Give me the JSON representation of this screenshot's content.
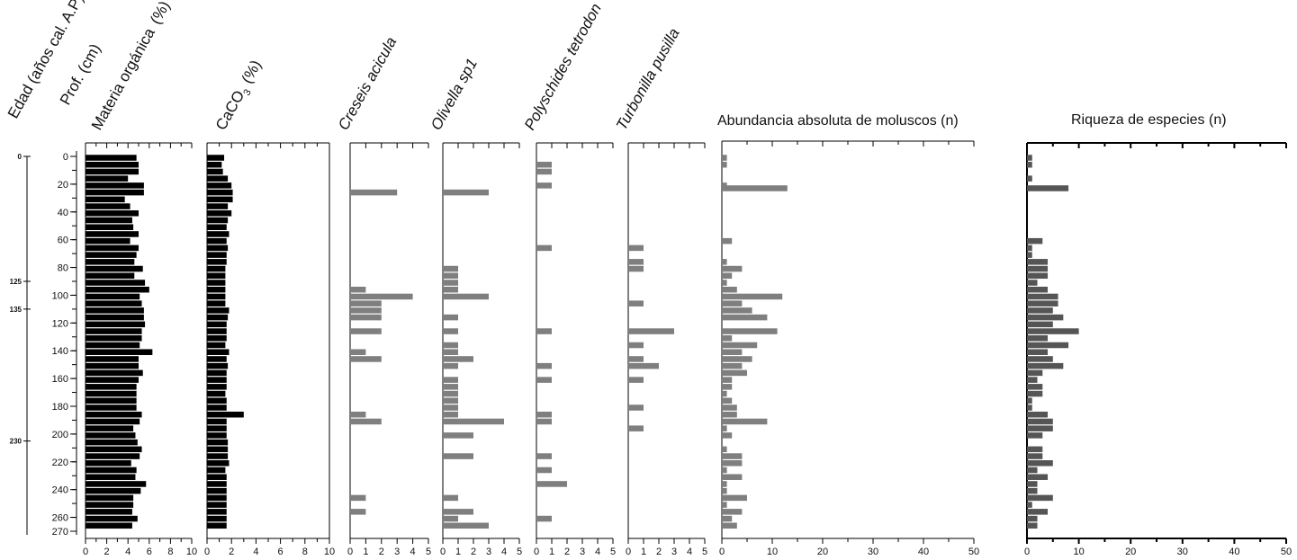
{
  "figure": {
    "age_header": "Edad (años cal. A.P)",
    "depth_header": "Prof. (cm)"
  },
  "chart_data": [
    {
      "type": "bar",
      "orientation": "horizontal",
      "name": "Materia orgánica (%)",
      "title_text": "Materia orgánica",
      "unit": "(%)",
      "xlim": [
        0,
        10
      ],
      "ticks": [
        "0",
        "2",
        "4",
        "6",
        "8",
        "10"
      ],
      "depths": [
        0,
        5,
        10,
        15,
        20,
        25,
        30,
        35,
        40,
        45,
        50,
        55,
        60,
        65,
        70,
        75,
        80,
        85,
        90,
        95,
        100,
        105,
        110,
        115,
        120,
        125,
        130,
        135,
        140,
        145,
        150,
        155,
        160,
        165,
        170,
        175,
        180,
        185,
        190,
        195,
        200,
        205,
        210,
        215,
        220,
        225,
        230,
        235,
        240,
        245,
        250,
        255,
        260,
        265
      ],
      "values": [
        4.8,
        5.0,
        5.0,
        4.0,
        5.5,
        5.5,
        3.7,
        4.2,
        5.0,
        4.4,
        4.5,
        5.0,
        4.2,
        5.0,
        4.8,
        4.6,
        5.4,
        4.6,
        5.6,
        6.0,
        5.1,
        5.3,
        5.5,
        5.5,
        5.6,
        5.3,
        5.3,
        5.1,
        6.3,
        5.0,
        5.0,
        5.4,
        5.0,
        4.8,
        4.8,
        4.8,
        4.8,
        5.3,
        5.1,
        4.5,
        4.7,
        4.9,
        5.3,
        5.1,
        4.3,
        4.8,
        4.7,
        5.7,
        5.2,
        4.5,
        4.5,
        4.4,
        4.9,
        4.4
      ]
    },
    {
      "type": "bar",
      "orientation": "horizontal",
      "name": "CaCO3 (%)",
      "title_text": "CaCO",
      "title_sub": "3",
      "unit": "(%)",
      "xlim": [
        0,
        10
      ],
      "ticks": [
        "0",
        "2",
        "4",
        "6",
        "8",
        "10"
      ],
      "depths": [
        0,
        5,
        10,
        15,
        20,
        25,
        30,
        35,
        40,
        45,
        50,
        55,
        60,
        65,
        70,
        75,
        80,
        85,
        90,
        95,
        100,
        105,
        110,
        115,
        120,
        125,
        130,
        135,
        140,
        145,
        150,
        155,
        160,
        165,
        170,
        175,
        180,
        185,
        190,
        195,
        200,
        205,
        210,
        215,
        220,
        225,
        230,
        235,
        240,
        245,
        250,
        255,
        260,
        265
      ],
      "values": [
        1.4,
        1.2,
        1.3,
        1.7,
        2.0,
        2.1,
        2.1,
        1.7,
        2.0,
        1.7,
        1.6,
        1.8,
        1.6,
        1.7,
        1.6,
        1.6,
        1.5,
        1.5,
        1.5,
        1.5,
        1.5,
        1.5,
        1.8,
        1.7,
        1.6,
        1.6,
        1.6,
        1.5,
        1.8,
        1.6,
        1.7,
        1.6,
        1.6,
        1.6,
        1.5,
        1.6,
        1.6,
        3.0,
        1.6,
        1.6,
        1.6,
        1.7,
        1.7,
        1.7,
        1.8,
        1.5,
        1.6,
        1.6,
        1.6,
        1.6,
        1.6,
        1.6,
        1.6,
        1.6
      ]
    },
    {
      "type": "bar",
      "orientation": "horizontal",
      "name": "Creseis acicula",
      "title_text": "Creseis acicula",
      "italic": true,
      "xlim": [
        0,
        5
      ],
      "ticks": [
        "0",
        "1",
        "2",
        "3",
        "4",
        "5"
      ],
      "depths": [
        25,
        95,
        100,
        105,
        110,
        115,
        125,
        140,
        145,
        185,
        190,
        245,
        255
      ],
      "values": [
        3,
        1,
        4,
        2,
        2,
        2,
        2,
        1,
        2,
        1,
        2,
        1,
        1
      ]
    },
    {
      "type": "bar",
      "orientation": "horizontal",
      "name": "Olivella sp1",
      "title_text": "Olivella sp1",
      "italic": true,
      "xlim": [
        0,
        5
      ],
      "ticks": [
        "0",
        "1",
        "2",
        "3",
        "4",
        "5"
      ],
      "depths": [
        25,
        80,
        85,
        90,
        95,
        100,
        115,
        125,
        135,
        140,
        145,
        150,
        160,
        165,
        170,
        175,
        180,
        185,
        190,
        200,
        215,
        245,
        255,
        260,
        265
      ],
      "values": [
        3,
        1,
        1,
        1,
        1,
        3,
        1,
        1,
        1,
        1,
        2,
        1,
        1,
        1,
        1,
        1,
        1,
        1,
        4,
        2,
        2,
        1,
        2,
        1,
        3
      ]
    },
    {
      "type": "bar",
      "orientation": "horizontal",
      "name": "Polyschides tetrodon",
      "title_text": "Polyschides tetrodon",
      "italic": true,
      "xlim": [
        0,
        5
      ],
      "ticks": [
        "0",
        "1",
        "2",
        "3",
        "4",
        "5"
      ],
      "depths": [
        5,
        10,
        20,
        65,
        125,
        150,
        160,
        185,
        190,
        215,
        225,
        235,
        260
      ],
      "values": [
        1,
        1,
        1,
        1,
        1,
        1,
        1,
        1,
        1,
        1,
        1,
        2,
        1
      ]
    },
    {
      "type": "bar",
      "orientation": "horizontal",
      "name": "Turbonilla pusilla",
      "title_text": "Turbonilla pusilla",
      "italic": true,
      "xlim": [
        0,
        5
      ],
      "ticks": [
        "0",
        "1",
        "2",
        "3",
        "4",
        "5"
      ],
      "depths": [
        65,
        75,
        80,
        105,
        125,
        135,
        145,
        150,
        160,
        180,
        195
      ],
      "values": [
        1,
        1,
        1,
        1,
        3,
        1,
        1,
        2,
        1,
        1,
        1
      ]
    },
    {
      "type": "bar",
      "orientation": "horizontal",
      "name": "Abundancia absoluta de moluscos (n)",
      "title_text": "Abundancia absoluta de moluscos (n)",
      "xlim": [
        0,
        50
      ],
      "ticks": [
        "0",
        "10",
        "20",
        "30",
        "40",
        "50"
      ],
      "depths": [
        0,
        5,
        20,
        22,
        60,
        75,
        80,
        85,
        90,
        95,
        100,
        105,
        110,
        115,
        125,
        130,
        135,
        140,
        145,
        150,
        155,
        160,
        165,
        170,
        175,
        180,
        185,
        190,
        195,
        200,
        210,
        215,
        220,
        225,
        230,
        235,
        240,
        245,
        250,
        255,
        260,
        265
      ],
      "values": [
        1,
        1,
        1,
        13,
        2,
        1,
        4,
        2,
        1,
        3,
        12,
        4,
        6,
        9,
        11,
        2,
        7,
        4,
        6,
        4,
        5,
        2,
        2,
        1,
        2,
        3,
        3,
        9,
        1,
        2,
        1,
        4,
        4,
        1,
        4,
        1,
        1,
        5,
        1,
        4,
        2,
        3
      ]
    },
    {
      "type": "bar",
      "orientation": "horizontal",
      "name": "Riqueza de especies (n)",
      "title_text": "Riqueza de especies (n)",
      "xlim": [
        0,
        50
      ],
      "ticks": [
        "0",
        "10",
        "20",
        "30",
        "40",
        "50"
      ],
      "depths": [
        0,
        5,
        15,
        22,
        60,
        65,
        70,
        75,
        80,
        85,
        90,
        95,
        100,
        105,
        110,
        115,
        120,
        125,
        130,
        135,
        140,
        145,
        150,
        155,
        160,
        165,
        170,
        175,
        180,
        185,
        190,
        195,
        200,
        210,
        215,
        220,
        225,
        230,
        235,
        240,
        245,
        250,
        255,
        260,
        265
      ],
      "values": [
        1,
        1,
        1,
        8,
        3,
        1,
        1,
        4,
        4,
        4,
        2,
        4,
        6,
        6,
        5,
        7,
        5,
        10,
        4,
        8,
        4,
        5,
        7,
        3,
        2,
        3,
        3,
        1,
        1,
        4,
        5,
        5,
        3,
        3,
        3,
        5,
        2,
        4,
        2,
        2,
        5,
        1,
        4,
        2,
        2
      ]
    }
  ],
  "depth_axis": {
    "range": [
      0,
      270
    ],
    "ticks": [
      "0",
      "20",
      "40",
      "60",
      "80",
      "100",
      "120",
      "140",
      "160",
      "180",
      "200",
      "220",
      "240",
      "260",
      "270"
    ]
  },
  "age_axis": {
    "labels": [
      {
        "text": "0",
        "depth": 0
      },
      {
        "text": "125",
        "depth": 90
      },
      {
        "text": "135",
        "depth": 110
      },
      {
        "text": "230",
        "depth": 205
      }
    ]
  },
  "colors": {
    "dark_bars": "#000000",
    "grey_bars": "#7f7f7f",
    "dark_grey_bars": "#555555",
    "axis": "#000000"
  }
}
